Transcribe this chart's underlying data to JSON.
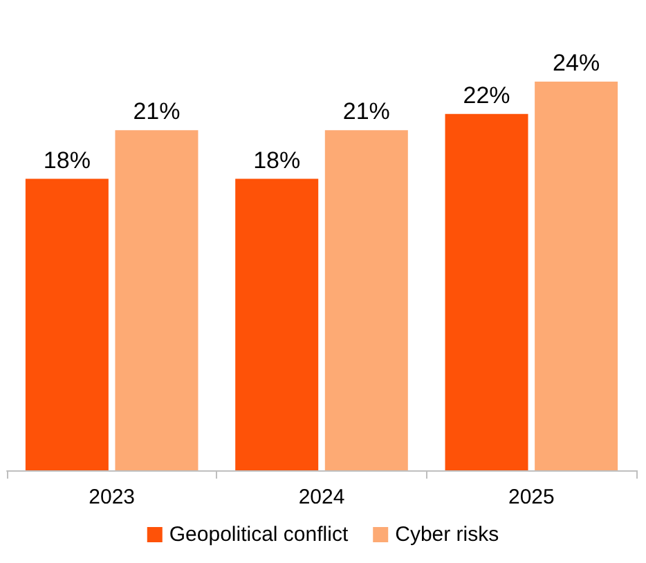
{
  "chart_data": {
    "type": "bar",
    "categories": [
      "2023",
      "2024",
      "2025"
    ],
    "series": [
      {
        "name": "Geopolitical conflict",
        "color": "#fe5208",
        "values": [
          18,
          18,
          22
        ],
        "value_labels": [
          "18%",
          "18%",
          "22%"
        ]
      },
      {
        "name": "Cyber risks",
        "color": "#fdaa74",
        "values": [
          21,
          21,
          24
        ],
        "value_labels": [
          "21%",
          "21%",
          "24%"
        ]
      }
    ],
    "legend": "bottom"
  }
}
